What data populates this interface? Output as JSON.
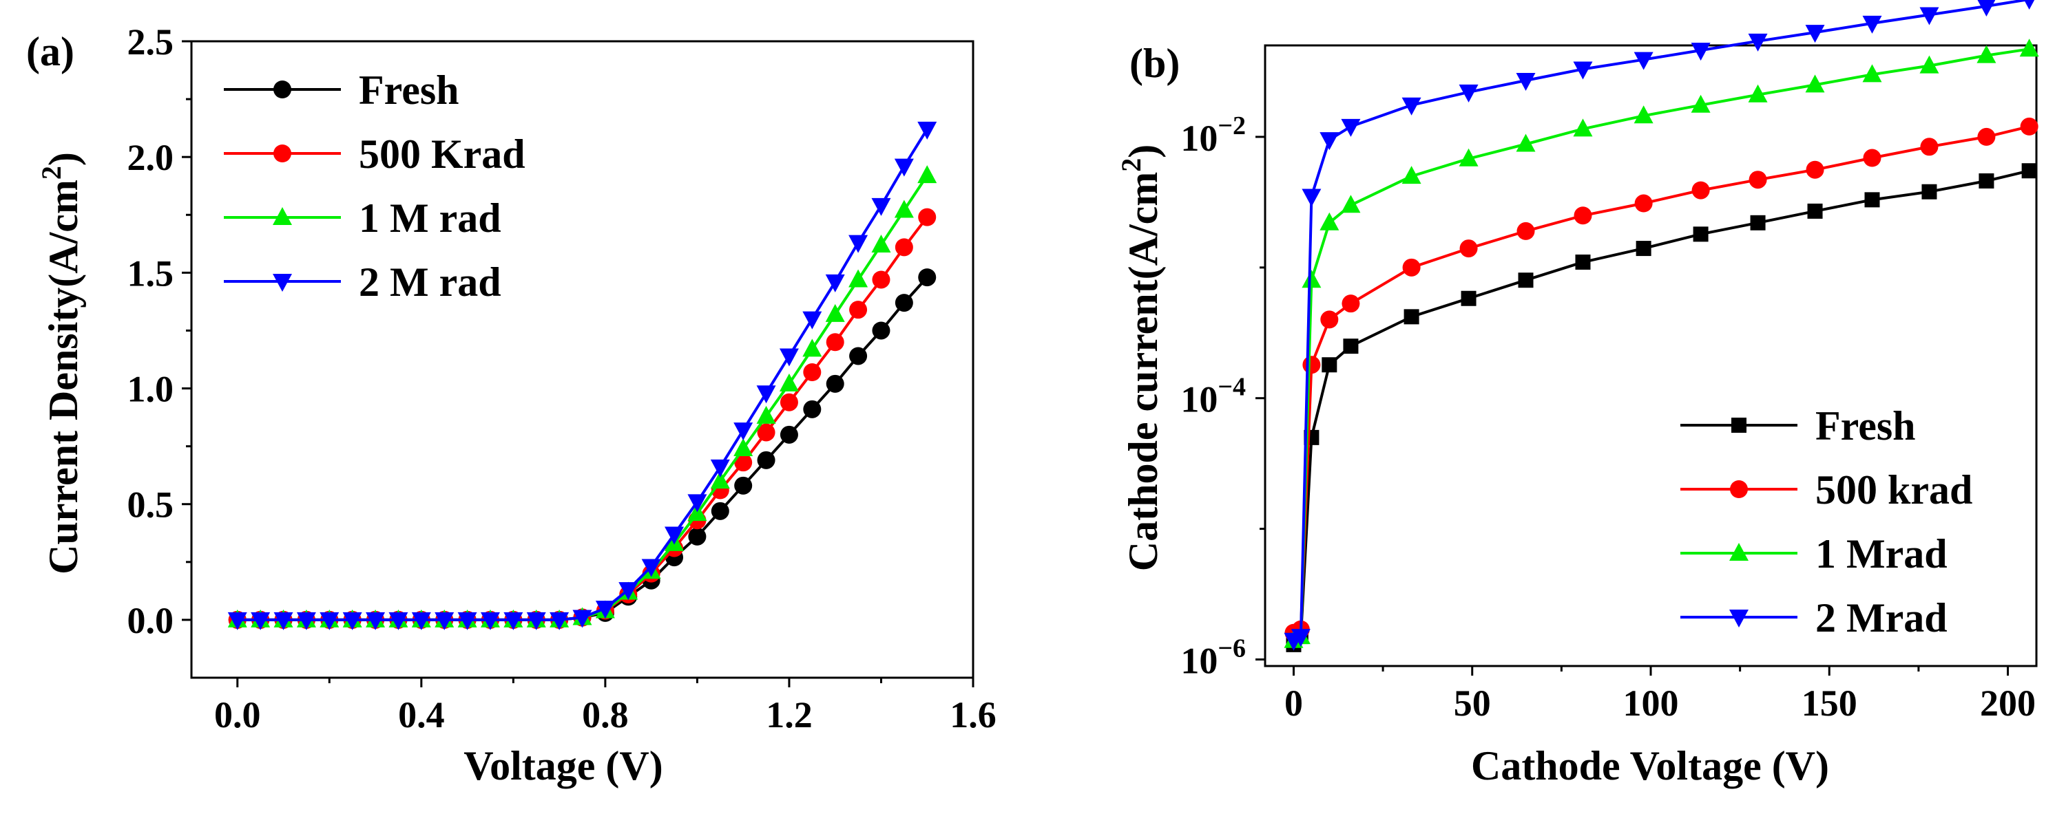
{
  "colors": {
    "fresh": "#000000",
    "krad500": "#ff0000",
    "mrad1": "#00ee00",
    "mrad2": "#0000ff"
  },
  "chart_data": [
    {
      "id": "a",
      "panel_label": "(a)",
      "type": "line",
      "xlabel": "Voltage (V)",
      "ylabel_main": "Current Density(A/cm",
      "ylabel_sup": "2",
      "ylabel_close": ")",
      "xlim": [
        -0.1,
        1.6
      ],
      "ylim": [
        -0.25,
        2.5
      ],
      "x_ticks": [
        0.0,
        0.4,
        0.8,
        1.2,
        1.6
      ],
      "x_tick_labels": [
        "0.0",
        "0.4",
        "0.8",
        "1.2",
        "1.6"
      ],
      "y_ticks": [
        0.0,
        0.5,
        1.0,
        1.5,
        2.0,
        2.5
      ],
      "y_tick_labels": [
        "0.0",
        "0.5",
        "1.0",
        "1.5",
        "2.0",
        "2.5"
      ],
      "legend_position": "top-left",
      "x": [
        0.0,
        0.05,
        0.1,
        0.15,
        0.2,
        0.25,
        0.3,
        0.35,
        0.4,
        0.45,
        0.5,
        0.55,
        0.6,
        0.65,
        0.7,
        0.75,
        0.8,
        0.85,
        0.9,
        0.95,
        1.0,
        1.05,
        1.1,
        1.15,
        1.2,
        1.25,
        1.3,
        1.35,
        1.4,
        1.45,
        1.5
      ],
      "series": [
        {
          "name": "Fresh",
          "color": "#000000",
          "marker": "circle",
          "values": [
            0,
            0,
            0,
            0,
            0,
            0,
            0,
            0,
            0,
            0,
            0,
            0,
            0,
            0,
            0,
            0.01,
            0.03,
            0.1,
            0.17,
            0.27,
            0.36,
            0.47,
            0.58,
            0.69,
            0.8,
            0.91,
            1.02,
            1.14,
            1.25,
            1.37,
            1.48
          ]
        },
        {
          "name": "500 Krad",
          "color": "#ff0000",
          "marker": "circle",
          "values": [
            0,
            0,
            0,
            0,
            0,
            0,
            0,
            0,
            0,
            0,
            0,
            0,
            0,
            0,
            0,
            0.01,
            0.04,
            0.11,
            0.2,
            0.31,
            0.43,
            0.56,
            0.68,
            0.81,
            0.94,
            1.07,
            1.2,
            1.34,
            1.47,
            1.61,
            1.74
          ]
        },
        {
          "name": "1   M rad",
          "color": "#00ee00",
          "marker": "triangle-up",
          "values": [
            0,
            0,
            0,
            0,
            0,
            0,
            0,
            0,
            0,
            0,
            0,
            0,
            0,
            0,
            0,
            0.01,
            0.04,
            0.12,
            0.21,
            0.33,
            0.46,
            0.6,
            0.74,
            0.88,
            1.02,
            1.17,
            1.32,
            1.47,
            1.62,
            1.77,
            1.92
          ]
        },
        {
          "name": "2   M rad",
          "color": "#0000ff",
          "marker": "triangle-down",
          "values": [
            0,
            0,
            0,
            0,
            0,
            0,
            0,
            0,
            0,
            0,
            0,
            0,
            0,
            0,
            0,
            0.01,
            0.05,
            0.13,
            0.23,
            0.37,
            0.51,
            0.66,
            0.82,
            0.98,
            1.14,
            1.3,
            1.46,
            1.63,
            1.79,
            1.96,
            2.12
          ]
        }
      ]
    },
    {
      "id": "b",
      "panel_label": "(b)",
      "type": "line",
      "xlabel": "Cathode Voltage (V)",
      "ylabel_main": "Cathode current(A/cm",
      "ylabel_sup": "2",
      "ylabel_close": ")",
      "y_scale": "log",
      "xlim": [
        -8,
        208
      ],
      "ylim_log10": [
        -6.05,
        -1.3
      ],
      "x_ticks": [
        0,
        50,
        100,
        150,
        200
      ],
      "x_tick_labels": [
        "0",
        "50",
        "100",
        "150",
        "200"
      ],
      "y_ticks_log10": [
        -6,
        -4,
        -2
      ],
      "y_tick_base": "10",
      "y_tick_exponents": [
        "−6",
        "−4",
        "−2"
      ],
      "legend_position": "bottom-right",
      "series": [
        {
          "name": "Fresh",
          "color": "#000000",
          "marker": "square",
          "x": [
            0,
            2,
            5,
            10,
            16,
            33,
            49,
            65,
            81,
            98,
            114,
            130,
            146,
            162,
            178,
            194,
            206
          ],
          "values": [
            1.3e-06,
            1.5e-06,
            5e-05,
            0.00018,
            0.00025,
            0.00042,
            0.00058,
            0.0008,
            0.0011,
            0.0014,
            0.0018,
            0.0022,
            0.0027,
            0.0033,
            0.0038,
            0.0046,
            0.0055
          ]
        },
        {
          "name": "500 krad",
          "color": "#ff0000",
          "marker": "circle",
          "x": [
            0,
            2,
            5,
            10,
            16,
            33,
            49,
            65,
            81,
            98,
            114,
            130,
            146,
            162,
            178,
            194,
            206
          ],
          "values": [
            1.6e-06,
            1.7e-06,
            0.00018,
            0.0004,
            0.00053,
            0.001,
            0.0014,
            0.0019,
            0.0025,
            0.0031,
            0.0039,
            0.0047,
            0.0056,
            0.0069,
            0.0084,
            0.01,
            0.012
          ]
        },
        {
          "name": "1    Mrad",
          "color": "#00ee00",
          "marker": "triangle-up",
          "x": [
            0,
            2,
            5,
            10,
            16,
            33,
            49,
            65,
            81,
            98,
            114,
            130,
            146,
            162,
            178,
            194,
            206
          ],
          "values": [
            1.4e-06,
            1.5e-06,
            0.0008,
            0.0022,
            0.003,
            0.005,
            0.0068,
            0.0088,
            0.0115,
            0.0145,
            0.0175,
            0.021,
            0.025,
            0.03,
            0.035,
            0.042,
            0.047
          ]
        },
        {
          "name": "2    Mrad",
          "color": "#0000ff",
          "marker": "triangle-down",
          "x": [
            0,
            2,
            5,
            10,
            16,
            33,
            49,
            65,
            81,
            98,
            114,
            130,
            146,
            162,
            178,
            194,
            206
          ],
          "values": [
            1.4e-06,
            1.5e-06,
            0.0035,
            0.0095,
            0.012,
            0.0175,
            0.022,
            0.027,
            0.033,
            0.039,
            0.046,
            0.054,
            0.063,
            0.074,
            0.086,
            0.1,
            0.113
          ]
        }
      ]
    }
  ]
}
